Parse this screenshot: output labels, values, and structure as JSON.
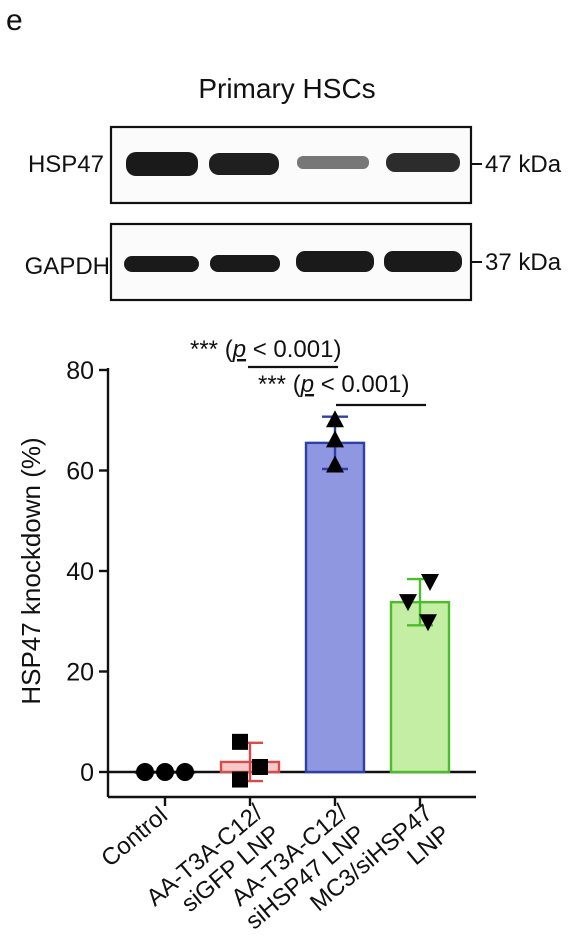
{
  "panel_label": "e",
  "blot": {
    "title": "Primary HSCs",
    "rows": [
      {
        "protein": "HSP47",
        "marker": "47 kDa"
      },
      {
        "protein": "GAPDH",
        "marker": "37 kDa"
      }
    ]
  },
  "significance": [
    {
      "stars": "***",
      "p_open": "(",
      "p_symbol": "p",
      "p_rest": " < 0.001)"
    },
    {
      "stars": "***",
      "p_open": "(",
      "p_symbol": "p",
      "p_rest": " < 0.001)"
    }
  ],
  "chart_data": {
    "type": "bar",
    "title": "",
    "ylabel": "HSP47 knockdown (%)",
    "ylim": [
      0,
      80
    ],
    "yticks": [
      "0",
      "20",
      "40",
      "60",
      "80"
    ],
    "categories": [
      "Control",
      "AA-T3A-C12/\nsiGFP LNP",
      "AA-T3A-C12/\nsiHSP47 LNP",
      "MC3/siHSP47\nLNP"
    ],
    "values": [
      0,
      2,
      65.5,
      33.8
    ],
    "error": [
      0,
      3.8,
      5.2,
      4.6
    ],
    "colors": {
      "fill": [
        "#ffffff",
        "#f5c9c9",
        "#8e97e0",
        "#c4eea4"
      ],
      "edge": [
        "#111111",
        "#d94a4a",
        "#2f3fa8",
        "#4cbd2a"
      ]
    },
    "points": [
      {
        "marker": "circle",
        "values": [
          0,
          0,
          0
        ]
      },
      {
        "marker": "square",
        "values": [
          6,
          -1.5,
          1
        ]
      },
      {
        "marker": "triangle-up",
        "values": [
          70,
          66,
          61
        ]
      },
      {
        "marker": "triangle-down",
        "values": [
          38,
          34,
          30
        ]
      }
    ]
  }
}
